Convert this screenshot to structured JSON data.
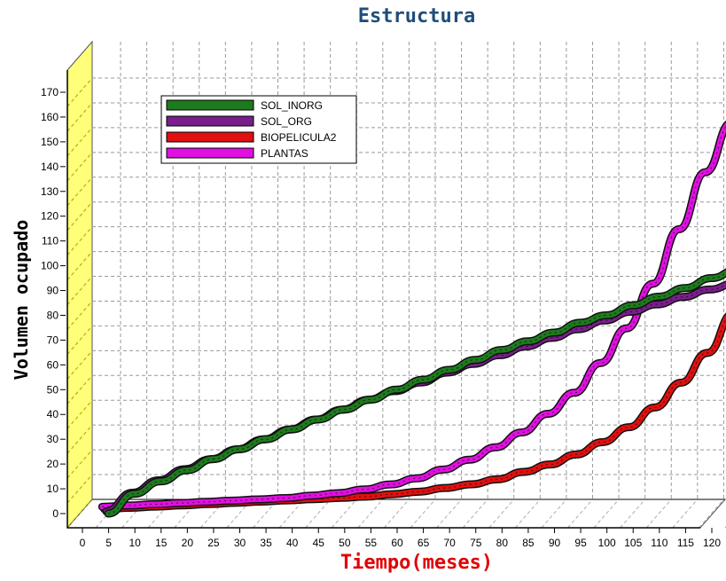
{
  "chart_data": {
    "type": "line",
    "title": "Estructura",
    "xlabel": "Tiempo(meses)",
    "ylabel": "Volumen ocupado",
    "xlim": [
      0,
      120
    ],
    "ylim": [
      0,
      170
    ],
    "xticks": [
      0,
      5,
      10,
      15,
      20,
      25,
      30,
      35,
      40,
      45,
      50,
      55,
      60,
      65,
      70,
      75,
      80,
      85,
      90,
      95,
      100,
      105,
      110,
      115,
      120
    ],
    "yticks": [
      0,
      10,
      20,
      30,
      40,
      50,
      60,
      70,
      80,
      90,
      100,
      110,
      120,
      130,
      140,
      150,
      160,
      170
    ],
    "grid": true,
    "legend_position": "top-left",
    "x": [
      0,
      5,
      10,
      15,
      20,
      25,
      30,
      35,
      40,
      45,
      50,
      55,
      60,
      65,
      70,
      75,
      80,
      85,
      90,
      95,
      100,
      105,
      110,
      115,
      120
    ],
    "series": [
      {
        "name": "SOL_INORG",
        "color": "#1e7a1e",
        "values": [
          0,
          8,
          13,
          17.5,
          22,
          26,
          30,
          34,
          38,
          42,
          46,
          50,
          54,
          58,
          62,
          66,
          69.5,
          73,
          77,
          80,
          84,
          87.5,
          91,
          95,
          98.5
        ]
      },
      {
        "name": "SOL_ORG",
        "color": "#7a1e8c",
        "values": [
          0,
          7.5,
          12.5,
          17,
          21,
          25,
          29,
          33,
          37,
          41,
          45,
          48.5,
          52,
          56,
          59.5,
          63,
          66.5,
          70,
          73.5,
          77,
          80.5,
          83.5,
          86.5,
          89.5,
          92
        ]
      },
      {
        "name": "BIOPELICULA2",
        "color": "#e01010",
        "values": [
          0,
          0.5,
          1,
          1.5,
          2,
          2.5,
          3,
          3.5,
          4,
          4.5,
          5,
          6,
          7,
          8.5,
          10,
          12,
          15,
          18,
          22,
          27,
          33,
          41,
          51,
          63,
          79
        ]
      },
      {
        "name": "PLANTAS",
        "color": "#e010e0",
        "values": [
          0,
          0.5,
          1,
          1.5,
          2,
          2.5,
          3,
          3.5,
          4.5,
          5.5,
          7,
          9,
          11.5,
          15,
          19,
          24,
          30,
          37.5,
          46,
          58,
          72,
          90,
          112,
          135,
          155
        ]
      }
    ]
  }
}
